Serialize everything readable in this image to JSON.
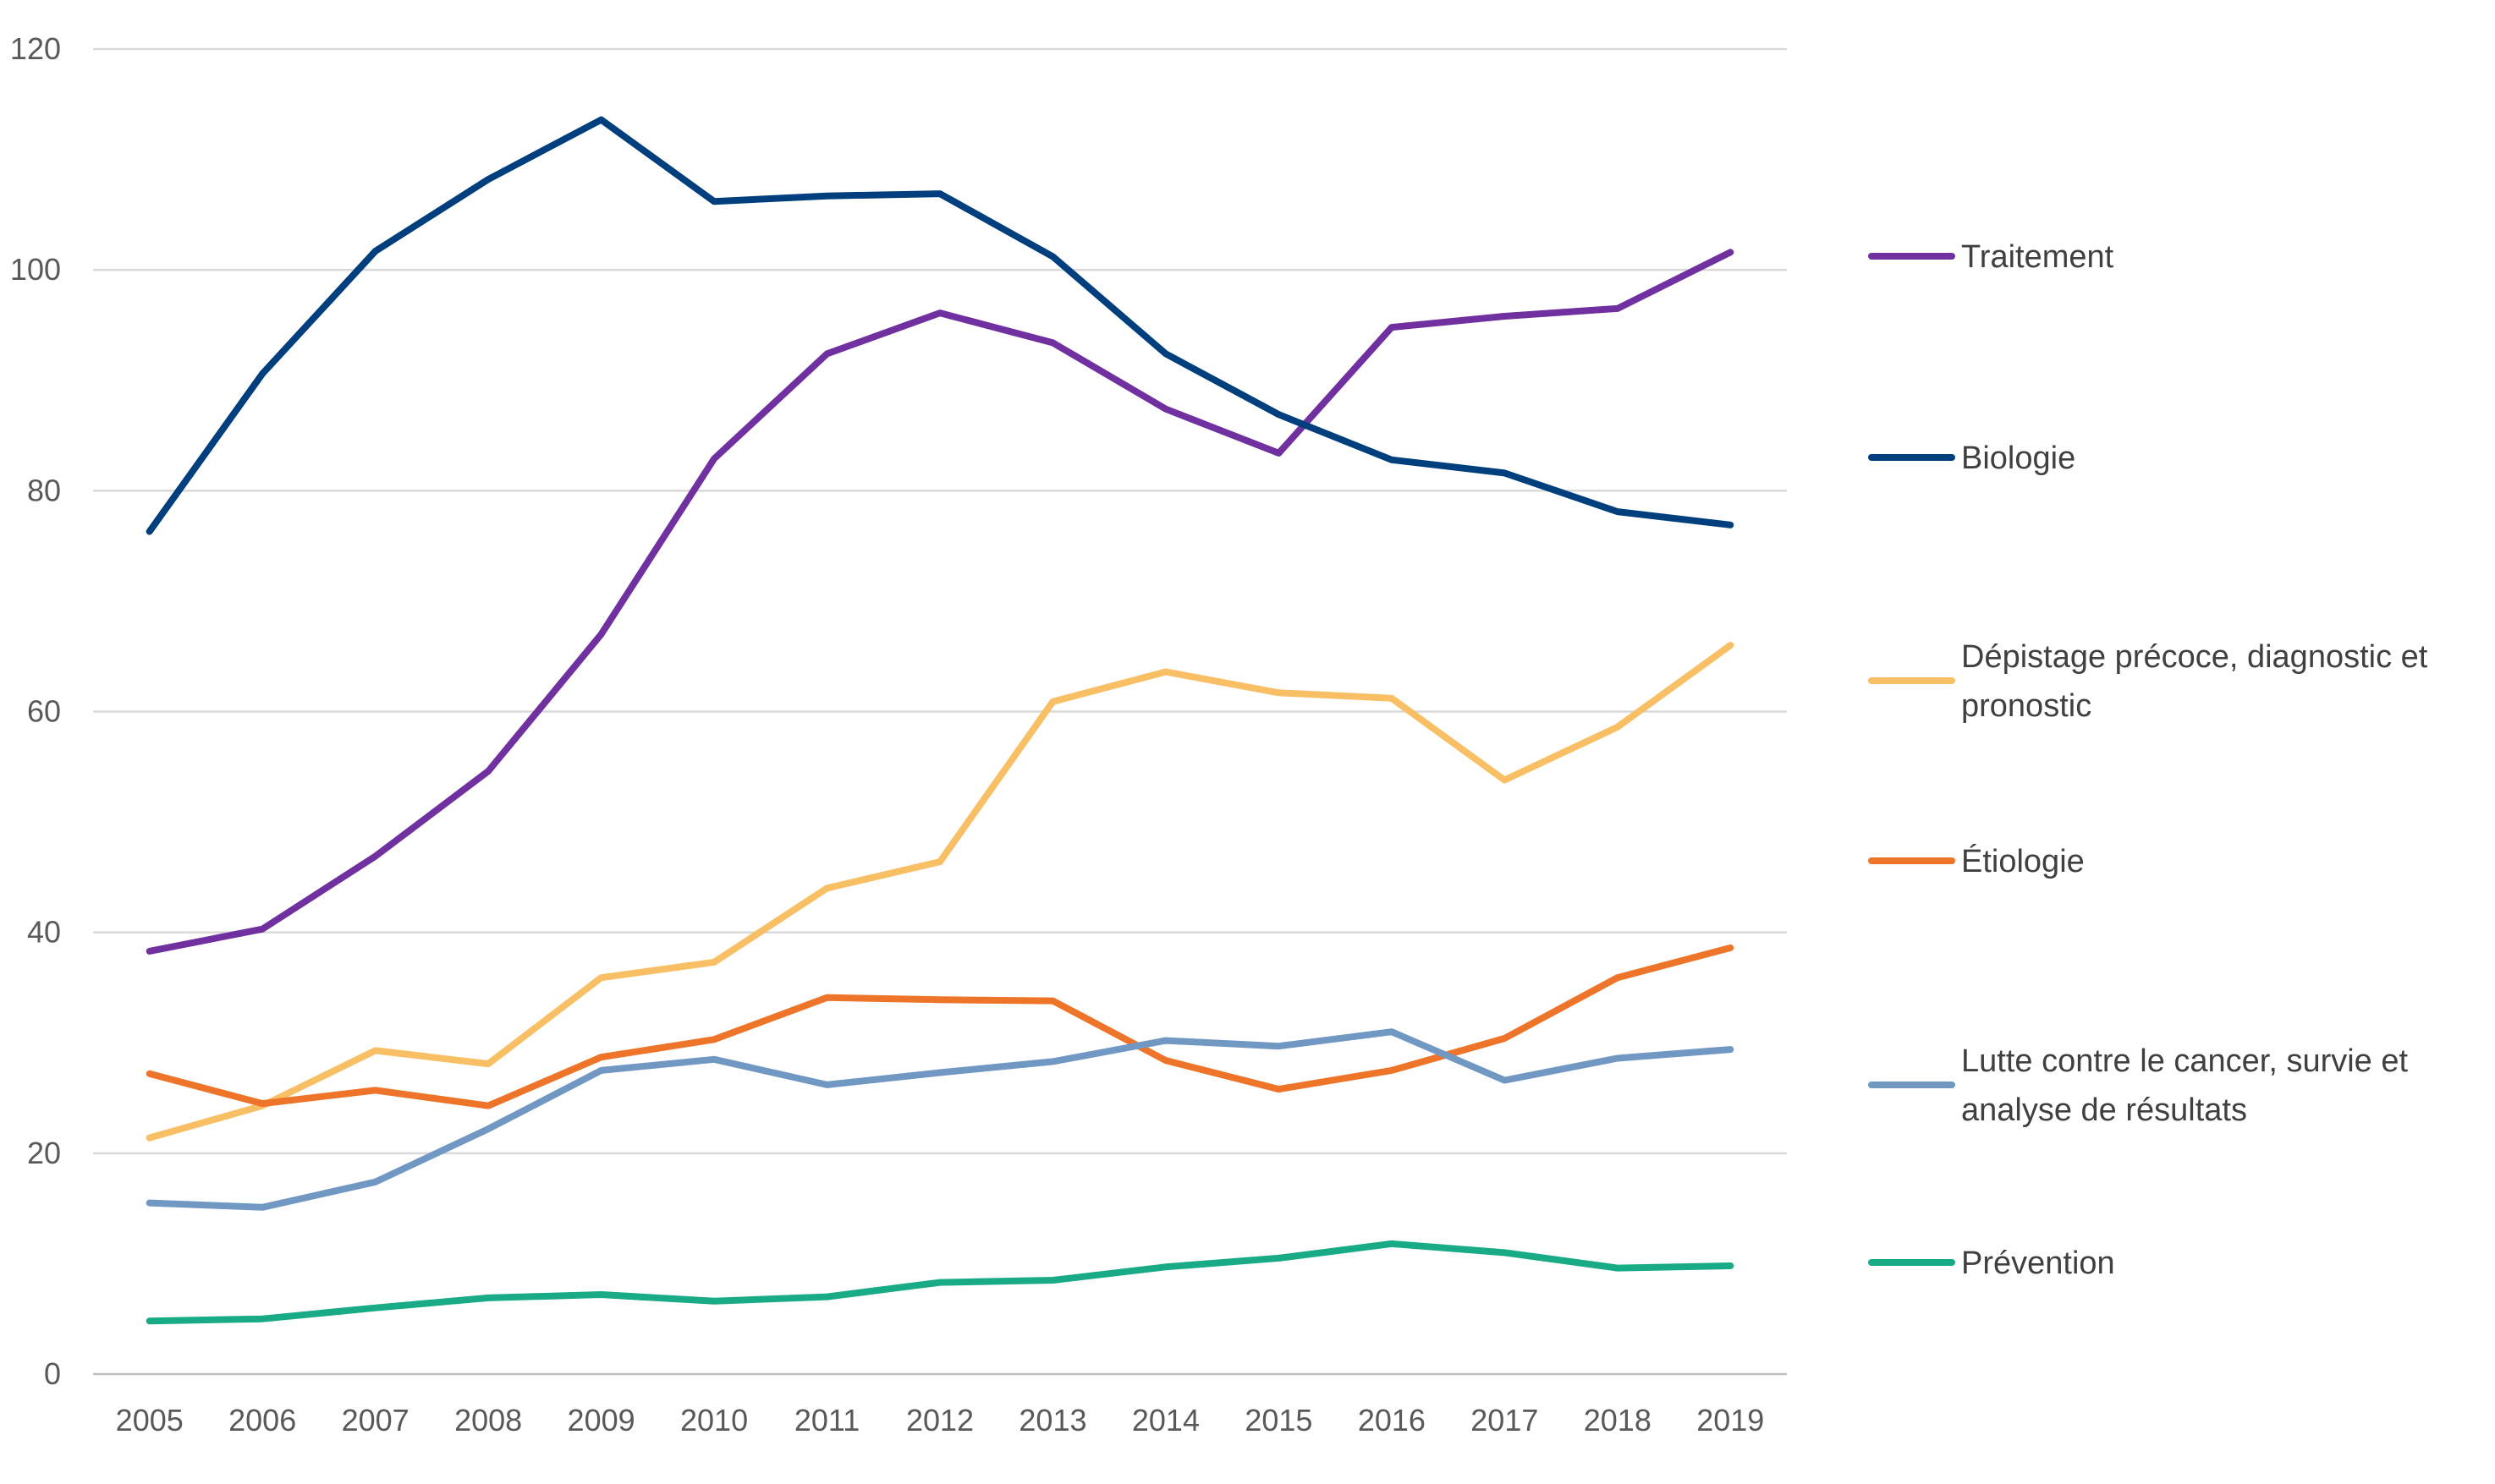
{
  "chart_data": {
    "type": "line",
    "title": "",
    "xlabel": "",
    "ylabel": "",
    "ylim": [
      0,
      120
    ],
    "yticks": [
      "0",
      "20",
      "40",
      "60",
      "80",
      "100",
      "120"
    ],
    "grid": true,
    "legend_position": "right",
    "categories": [
      "2005",
      "2006",
      "2007",
      "2008",
      "2009",
      "2010",
      "2011",
      "2012",
      "2013",
      "2014",
      "2015",
      "2016",
      "2017",
      "2018",
      "2019"
    ],
    "series": [
      {
        "name": "Traitement",
        "color": "#7030a0",
        "legend_lines": [
          "Traitement"
        ],
        "values": [
          38.3,
          40.3,
          46.9,
          54.6,
          67.0,
          82.9,
          92.4,
          96.1,
          93.4,
          87.4,
          83.4,
          94.8,
          95.8,
          96.5,
          101.6
        ]
      },
      {
        "name": "Biologie",
        "color": "#003f7d",
        "legend_lines": [
          "Biologie"
        ],
        "values": [
          76.3,
          90.6,
          101.7,
          108.2,
          113.6,
          106.2,
          106.7,
          106.9,
          101.2,
          92.4,
          86.9,
          82.8,
          81.6,
          78.1,
          76.9
        ]
      },
      {
        "name": "Dépistage précoce, diagnostic et pronostic",
        "color": "#f9bf65",
        "legend_lines": [
          "Dépistage précoce, diagnostic et",
          "pronostic"
        ],
        "values": [
          21.4,
          24.3,
          29.3,
          28.1,
          35.9,
          37.3,
          44.0,
          46.4,
          60.9,
          63.6,
          61.7,
          61.2,
          53.8,
          58.6,
          66.0
        ]
      },
      {
        "name": "Étiologie",
        "color": "#ed7429",
        "legend_lines": [
          "Étiologie"
        ],
        "values": [
          27.2,
          24.5,
          25.7,
          24.3,
          28.7,
          30.3,
          34.1,
          33.9,
          33.8,
          28.4,
          25.8,
          27.5,
          30.4,
          35.9,
          38.6
        ]
      },
      {
        "name": "Lutte contre le cancer, survie et analyse de résultats",
        "color": "#7098c3",
        "legend_lines": [
          "Lutte contre le cancer, survie et",
          "analyse de résultats"
        ],
        "values": [
          15.5,
          15.1,
          17.4,
          22.2,
          27.5,
          28.5,
          26.2,
          27.3,
          28.3,
          30.2,
          29.7,
          31.0,
          26.6,
          28.6,
          29.4
        ]
      },
      {
        "name": "Prévention",
        "color": "#19ab86",
        "legend_lines": [
          "Prévention"
        ],
        "values": [
          4.8,
          5.0,
          6.0,
          6.9,
          7.2,
          6.6,
          7.0,
          8.3,
          8.5,
          9.7,
          10.5,
          11.8,
          11.0,
          9.6,
          9.8
        ]
      }
    ]
  }
}
